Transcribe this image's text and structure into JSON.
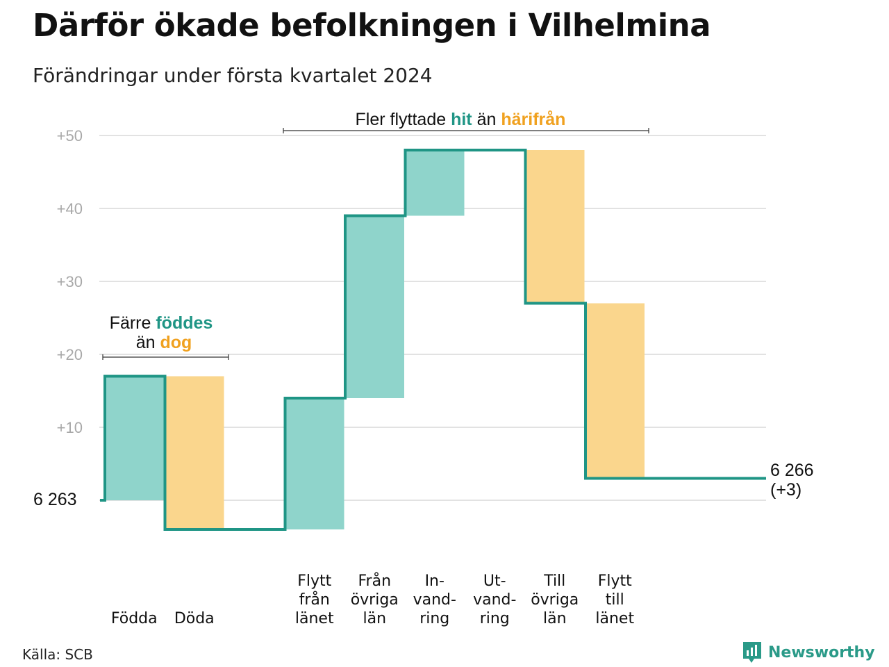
{
  "title": "Därför ökade befolkningen i Vilhelmina",
  "subtitle": "Förändringar under första kvartalet 2024",
  "source": "Källa: SCB",
  "brand": {
    "name": "Newsworthy",
    "logo_icon": "newsworthy-logo-icon"
  },
  "colors": {
    "increase": "#8fd4cb",
    "decrease": "#fad68d",
    "line": "#1f9585",
    "hit": "#1f9585",
    "harifran": "#f0a11f"
  },
  "annotations": {
    "births": {
      "l1_a": "Färre",
      "l1_b": "föddes",
      "l2_a": "än",
      "l2_b": "dog"
    },
    "migration": {
      "a": "Fler flyttade",
      "b": "hit",
      "c": "än",
      "d": "härifrån"
    }
  },
  "start_label": "6  263",
  "end_label": {
    "value": "6 266",
    "change": "(+3)"
  },
  "chart_data": {
    "type": "bar",
    "title": "Därför ökade befolkningen i Vilhelmina",
    "subtitle": "Förändringar under första kvartalet 2024",
    "ylim": [
      -6,
      52
    ],
    "yticks": [
      {
        "value": 10,
        "label": "+10"
      },
      {
        "value": 20,
        "label": "+20"
      },
      {
        "value": 30,
        "label": "+30"
      },
      {
        "value": 40,
        "label": "+40"
      },
      {
        "value": 50,
        "label": "+50"
      }
    ],
    "grid": true,
    "baseline": 6263,
    "end": 6266,
    "net_change": 3,
    "categories": [
      {
        "lines": [
          "Födda"
        ],
        "value": 17
      },
      {
        "lines": [
          "Döda"
        ],
        "value": -21
      },
      {
        "lines": [],
        "value": null
      },
      {
        "lines": [
          "Flytt",
          "från",
          "länet"
        ],
        "value": 18
      },
      {
        "lines": [
          "Från",
          "övriga",
          "län"
        ],
        "value": 25
      },
      {
        "lines": [
          "In-",
          "vand-",
          "ring"
        ],
        "value": 9
      },
      {
        "lines": [
          "Ut-",
          "vand-",
          "ring"
        ],
        "value": 0
      },
      {
        "lines": [
          "Till",
          "övriga",
          "län"
        ],
        "value": -21
      },
      {
        "lines": [
          "Flytt",
          "till",
          "länet"
        ],
        "value": -24
      }
    ]
  }
}
